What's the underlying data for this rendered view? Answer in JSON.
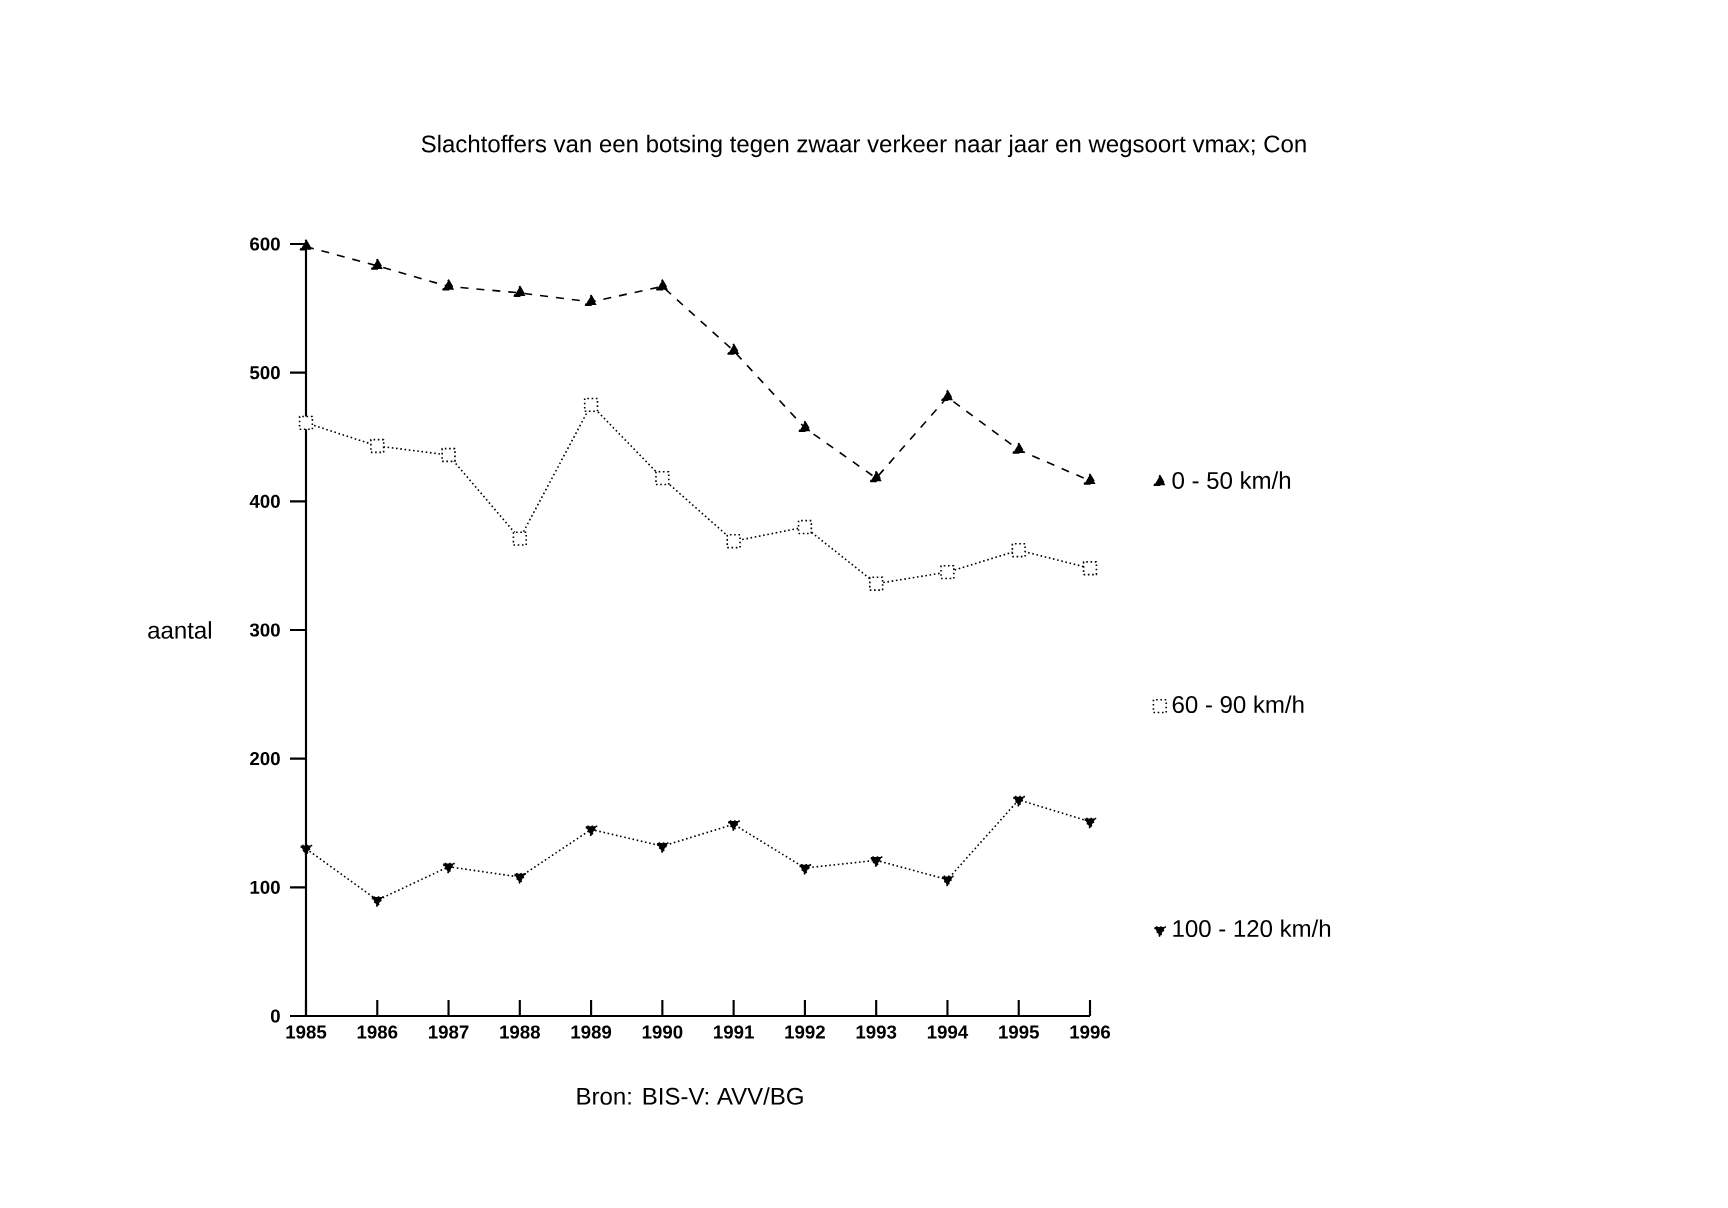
{
  "chart_data": {
    "type": "line",
    "title": "Slachtoffers van een botsing tegen zwaar verkeer naar jaar en wegsoort vmax; Con",
    "ylabel": "aantal",
    "annotations": [
      "Bron: BIS-V: AVV/BG"
    ],
    "x": [
      1985,
      1986,
      1987,
      1988,
      1989,
      1990,
      1991,
      1992,
      1993,
      1994,
      1995,
      1996
    ],
    "xlim": [
      1985,
      1996
    ],
    "xticks": [
      1985,
      1986,
      1987,
      1988,
      1989,
      1990,
      1991,
      1992,
      1993,
      1994,
      1995,
      1996
    ],
    "ylim": [
      0,
      600
    ],
    "yticks": [
      0,
      100,
      200,
      300,
      400,
      500,
      600
    ],
    "grid": false,
    "legend": "right",
    "series": [
      {
        "name": "0 - 50 km/h",
        "color": "#000000",
        "marker": "triangle",
        "line_style": "dashed",
        "values": [
          598,
          583,
          567,
          562,
          555,
          567,
          517,
          457,
          418,
          481,
          440,
          416
        ]
      },
      {
        "name": "60 - 90 km/h",
        "color": "#000000",
        "marker": "square",
        "line_style": "dotted",
        "values": [
          461,
          443,
          436,
          371,
          475,
          418,
          369,
          380,
          336,
          345,
          362,
          348
        ]
      },
      {
        "name": "100 - 120 km/h",
        "color": "#000000",
        "marker": "triangle down",
        "line_style": "dotted",
        "values": [
          130,
          90,
          116,
          108,
          145,
          132,
          149,
          115,
          121,
          106,
          168,
          151
        ]
      }
    ]
  }
}
